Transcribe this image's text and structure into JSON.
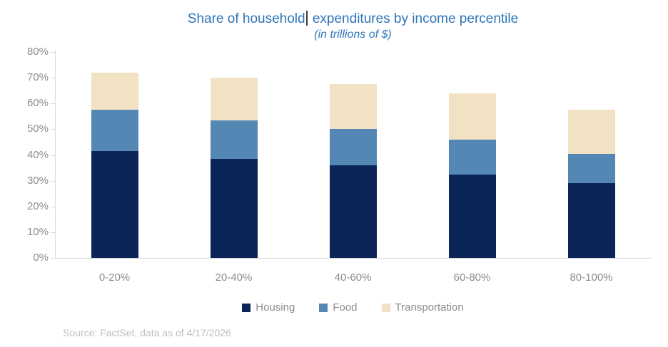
{
  "title": {
    "text_before_cursor": "Share of household",
    "text_after_cursor": "expenditures by income percentile",
    "subtitle": "(in trillions of $)"
  },
  "source_note": "Source: FactSet, data as of 4/17/2026",
  "colors": {
    "title_text": "#2E75B6",
    "axis_text": "#8C8C8C",
    "axis_line": "#D9D9D9",
    "legend_text": "#8C8C8C",
    "source_text": "#BFBFBF",
    "caret": "#3F3F3F",
    "housing": "#0B2559",
    "food": "#5587B5",
    "transportation": "#F0E2C2"
  },
  "chart_data": {
    "type": "bar",
    "stacked": true,
    "title": "Share of household expenditures by income percentile",
    "subtitle": "(in trillions of $)",
    "categories": [
      "0-20%",
      "20-40%",
      "40-60%",
      "60-80%",
      "80-100%"
    ],
    "series": [
      {
        "name": "Housing",
        "color": "#0B2559",
        "values": [
          41.5,
          38.5,
          36.0,
          32.5,
          29.0
        ]
      },
      {
        "name": "Food",
        "color": "#5587B5",
        "values": [
          16.0,
          15.0,
          14.0,
          13.5,
          11.5
        ]
      },
      {
        "name": "Transportation",
        "color": "#F0E2C2",
        "values": [
          14.5,
          16.5,
          17.5,
          18.0,
          17.0
        ]
      }
    ],
    "stack_totals": [
      72.0,
      70.0,
      67.5,
      64.0,
      57.5
    ],
    "xlabel": "",
    "ylabel": "",
    "ylim": [
      0,
      80
    ],
    "yticks": [
      0,
      10,
      20,
      30,
      40,
      50,
      60,
      70,
      80
    ],
    "ytick_labels": [
      "0%",
      "10%",
      "20%",
      "30%",
      "40%",
      "50%",
      "60%",
      "70%",
      "80%"
    ],
    "grid": false,
    "legend_position": "bottom"
  }
}
